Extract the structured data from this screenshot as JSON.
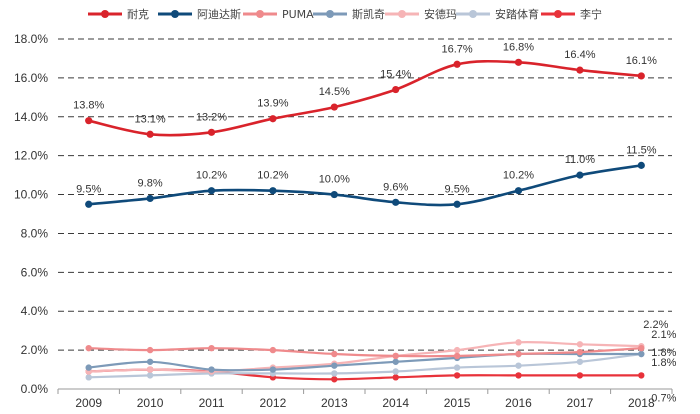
{
  "chart_data": {
    "type": "line",
    "title": "",
    "xlabel": "",
    "ylabel": "",
    "categories": [
      "2009",
      "2010",
      "2011",
      "2012",
      "2013",
      "2014",
      "2015",
      "2016",
      "2017",
      "2018"
    ],
    "ylim": [
      0,
      18
    ],
    "ytick_values": [
      0,
      2,
      4,
      6,
      8,
      10,
      12,
      14,
      16,
      18
    ],
    "ytick_labels": [
      "0.0%",
      "2.0%",
      "4.0%",
      "6.0%",
      "8.0%",
      "10.0%",
      "12.0%",
      "14.0%",
      "16.0%",
      "18.0%"
    ],
    "grid": true,
    "legend_position": "top",
    "series": [
      {
        "name": "耐克",
        "color": "#d9232b",
        "values": [
          13.8,
          13.1,
          13.2,
          13.9,
          14.5,
          15.4,
          16.7,
          16.8,
          16.4,
          16.1
        ],
        "labels": [
          "13.8%",
          "13.1%",
          "13.2%",
          "13.9%",
          "14.5%",
          "15.4%",
          "16.7%",
          "16.8%",
          "16.4%",
          "16.1%"
        ]
      },
      {
        "name": "阿迪达斯",
        "color": "#0f4a7a",
        "values": [
          9.5,
          9.8,
          10.2,
          10.2,
          10.0,
          9.6,
          9.5,
          10.2,
          11.0,
          11.5
        ],
        "labels": [
          "9.5%",
          "9.8%",
          "10.2%",
          "10.2%",
          "10.0%",
          "9.6%",
          "9.5%",
          "10.2%",
          "11.0%",
          "11.5%"
        ]
      },
      {
        "name": "PUMA",
        "color": "#ef8a8c",
        "values": [
          2.1,
          2.0,
          2.1,
          2.0,
          1.8,
          1.7,
          1.7,
          1.8,
          1.9,
          2.1
        ],
        "labels": [
          "",
          "",
          "",
          "",
          "",
          "",
          "",
          "",
          "",
          "2.1%"
        ]
      },
      {
        "name": "斯凯奇",
        "color": "#7d9ab8",
        "values": [
          1.1,
          1.4,
          1.0,
          1.0,
          1.2,
          1.4,
          1.6,
          1.8,
          1.8,
          1.8
        ],
        "labels": [
          "",
          "",
          "",
          "",
          "",
          "",
          "",
          "",
          "",
          "1.8%"
        ]
      },
      {
        "name": "安德玛",
        "color": "#f6b4b6",
        "values": [
          0.9,
          1.0,
          0.9,
          1.1,
          1.3,
          1.7,
          2.0,
          2.4,
          2.3,
          2.2
        ],
        "labels": [
          "",
          "",
          "",
          "",
          "",
          "",
          "",
          "",
          "",
          "2.2%"
        ]
      },
      {
        "name": "安踏体育",
        "color": "#b9c6d8",
        "values": [
          0.6,
          0.7,
          0.8,
          0.8,
          0.8,
          0.9,
          1.1,
          1.2,
          1.4,
          1.8
        ],
        "labels": [
          "",
          "",
          "",
          "",
          "",
          "",
          "",
          "",
          "",
          "1.8%"
        ]
      },
      {
        "name": "李宁",
        "color": "#e8323a",
        "values": [
          0.9,
          1.0,
          0.9,
          0.6,
          0.5,
          0.6,
          0.7,
          0.7,
          0.7,
          0.7
        ],
        "labels": [
          "",
          "",
          "",
          "",
          "",
          "",
          "",
          "",
          "",
          "0.7%"
        ]
      }
    ]
  }
}
